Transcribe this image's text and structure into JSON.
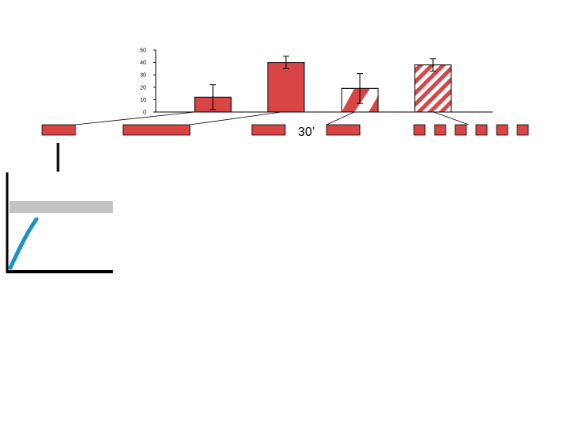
{
  "chart_data": {
    "type": "bar",
    "ylim": [
      0,
      50
    ],
    "yticks": [
      0,
      10,
      20,
      30,
      40,
      50
    ],
    "bars": [
      {
        "value": 12,
        "err": 10,
        "fill": "solid"
      },
      {
        "value": 40,
        "err": 5,
        "fill": "solid"
      },
      {
        "value": 19,
        "err": 12,
        "fill": "half-hatched"
      },
      {
        "value": 38,
        "err": 5,
        "fill": "hatched"
      }
    ]
  },
  "protocol": {
    "interval_label": "30’",
    "groups": [
      {
        "blocks": 1
      },
      {
        "blocks": 1
      },
      {
        "blocks": 2
      },
      {
        "blocks": 6
      }
    ]
  },
  "colors": {
    "red": "#d94545",
    "blue": "#1890c8",
    "gray": "#c4c4c4",
    "black": "#000000"
  }
}
